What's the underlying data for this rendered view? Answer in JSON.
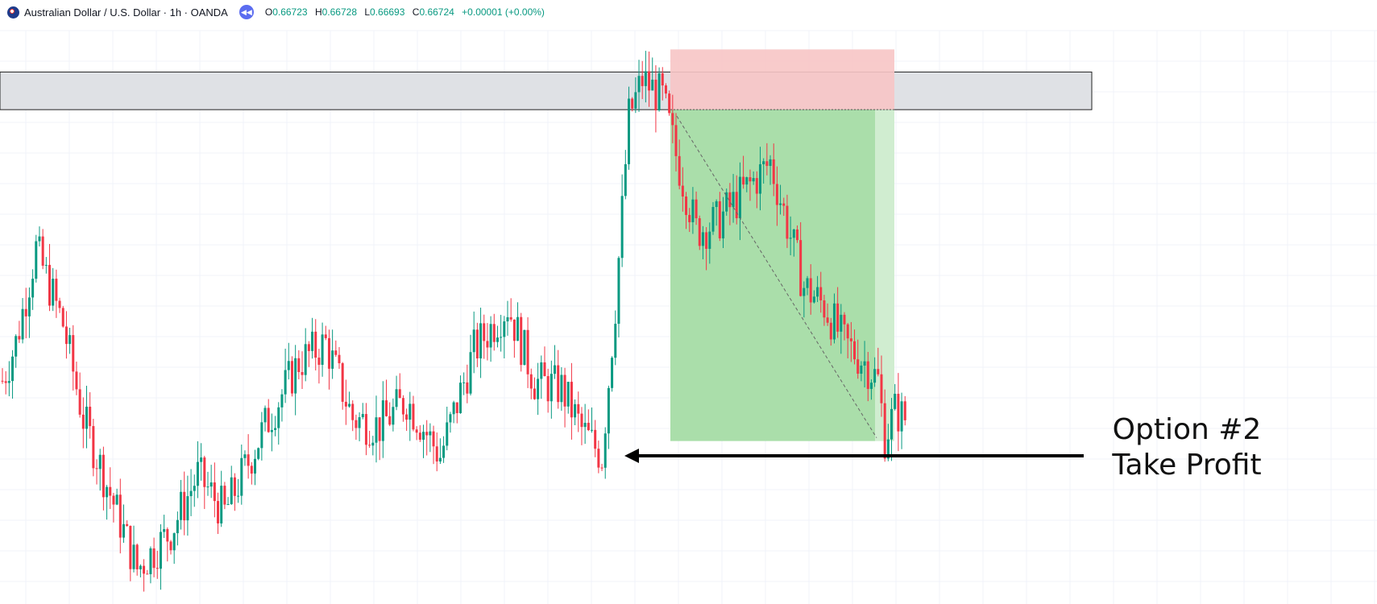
{
  "header": {
    "title": "Australian Dollar / U.S. Dollar · 1h · OANDA",
    "open_label": "O",
    "open": "0.66723",
    "high_label": "H",
    "high": "0.66728",
    "low_label": "L",
    "low": "0.66693",
    "close_label": "C",
    "close": "0.66724",
    "change": "+0.00001 (+0.00%)"
  },
  "annotation": {
    "line1": "Option #2",
    "line2": "Take Profit"
  },
  "colors": {
    "up": "#089981",
    "down": "#f23645",
    "grid": "#f0f3fa",
    "zone": "#dfe1e5",
    "stop": "#f7c5c5",
    "target": "#a5dca5",
    "target_light": "#cdeccd"
  },
  "chart_data": {
    "type": "candlestick",
    "symbol": "AUDUSD",
    "timeframe": "1h",
    "y_scale": "price",
    "anchor_points": [
      [
        0,
        0.664
      ],
      [
        4,
        0.665
      ],
      [
        10,
        0.6675
      ],
      [
        18,
        0.6655
      ],
      [
        24,
        0.663
      ],
      [
        32,
        0.661
      ],
      [
        40,
        0.659
      ],
      [
        50,
        0.66
      ],
      [
        58,
        0.6615
      ],
      [
        66,
        0.6605
      ],
      [
        78,
        0.6628
      ],
      [
        88,
        0.6645
      ],
      [
        96,
        0.665
      ],
      [
        104,
        0.663
      ],
      [
        112,
        0.6628
      ],
      [
        120,
        0.6635
      ],
      [
        130,
        0.662
      ],
      [
        140,
        0.6648
      ],
      [
        150,
        0.666
      ],
      [
        158,
        0.664
      ],
      [
        166,
        0.6638
      ],
      [
        172,
        0.6627
      ],
      [
        178,
        0.662
      ],
      [
        182,
        0.666
      ],
      [
        186,
        0.671
      ],
      [
        190,
        0.672
      ],
      [
        196,
        0.6715
      ],
      [
        200,
        0.67
      ],
      [
        206,
        0.668
      ],
      [
        212,
        0.6682
      ],
      [
        220,
        0.669
      ],
      [
        228,
        0.6698
      ],
      [
        232,
        0.6685
      ],
      [
        238,
        0.6665
      ],
      [
        244,
        0.666
      ],
      [
        250,
        0.665
      ],
      [
        256,
        0.6645
      ],
      [
        260,
        0.664
      ],
      [
        262,
        0.6625
      ],
      [
        265,
        0.6632
      ],
      [
        268,
        0.663
      ]
    ],
    "resistance_zone": [
      0.6712,
      0.6722
    ],
    "short_position": {
      "entry": 0.6712,
      "stop": 0.6728,
      "target": 0.6624
    },
    "take_profit_level": 0.6624
  }
}
